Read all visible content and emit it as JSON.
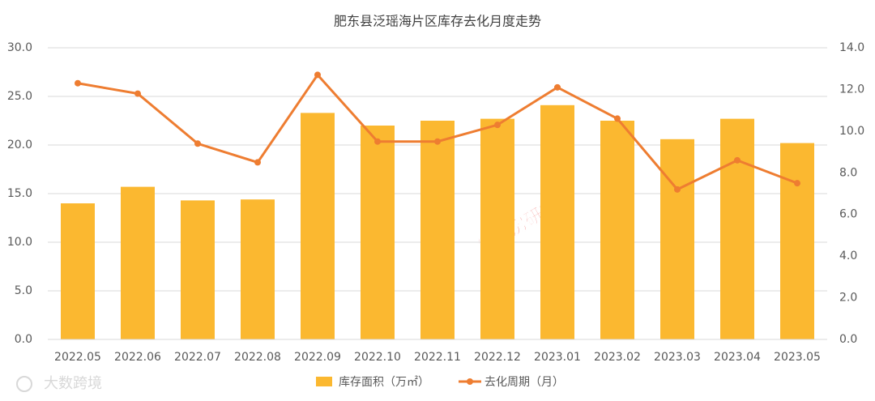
{
  "chart_data": {
    "type": "bar_line",
    "title": "肥东县泛瑶海片区库存去化月度走势",
    "categories": [
      "2022.05",
      "2022.06",
      "2022.07",
      "2022.08",
      "2022.09",
      "2022.10",
      "2022.11",
      "2022.12",
      "2023.01",
      "2023.02",
      "2023.03",
      "2023.04",
      "2023.05"
    ],
    "series": [
      {
        "name": "库存面积（万㎡）",
        "type": "bar",
        "color": "#fbb830",
        "values": [
          14.0,
          15.7,
          14.3,
          14.4,
          23.3,
          22.0,
          22.5,
          22.7,
          24.1,
          22.5,
          20.6,
          22.7,
          20.2
        ]
      },
      {
        "name": "去化周期（月）",
        "type": "line",
        "axis": "y2",
        "color": "#ee7d31",
        "values": [
          12.3,
          11.8,
          9.4,
          8.5,
          12.7,
          9.5,
          9.5,
          10.3,
          12.1,
          10.6,
          7.2,
          8.6,
          7.5
        ]
      }
    ],
    "ylim": [
      0,
      30
    ],
    "yticks": [
      {
        "value": 0,
        "label": "0.0"
      },
      {
        "value": 5,
        "label": "5.0"
      },
      {
        "value": 10,
        "label": "10.0"
      },
      {
        "value": 15,
        "label": "15.0"
      },
      {
        "value": 20,
        "label": "20.0"
      },
      {
        "value": 25,
        "label": "25.0"
      },
      {
        "value": 30,
        "label": "30.0"
      }
    ],
    "y2lim": [
      0,
      14
    ],
    "y2ticks": [
      {
        "value": 0,
        "label": "0.0"
      },
      {
        "value": 2,
        "label": "2.0"
      },
      {
        "value": 4,
        "label": "4.0"
      },
      {
        "value": 6,
        "label": "6.0"
      },
      {
        "value": 8,
        "label": "8.0"
      },
      {
        "value": 10,
        "label": "10.0"
      },
      {
        "value": 12,
        "label": "12.0"
      },
      {
        "value": 14,
        "label": "14.0"
      }
    ],
    "grid": true,
    "legend": "bottom",
    "watermarks": [
      "第一房研究院",
      "大数跨境"
    ]
  }
}
